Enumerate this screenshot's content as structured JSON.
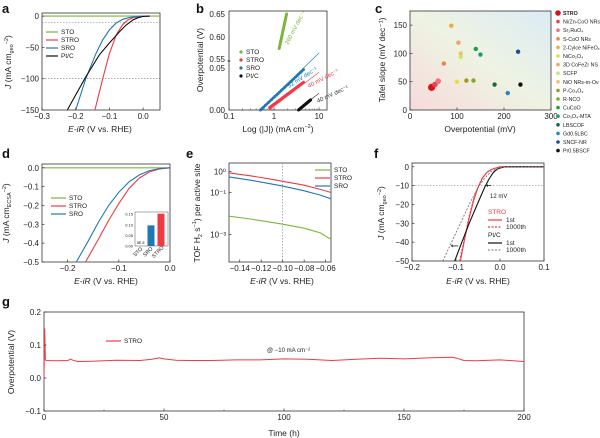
{
  "figure": {
    "panel_labels": [
      "a",
      "b",
      "c",
      "d",
      "e",
      "f",
      "g"
    ]
  },
  "colors": {
    "STO": "#7db53a",
    "STRO": "#ee3a45",
    "SRO": "#1f78b4",
    "PtC": "#111111"
  },
  "chart_data": [
    {
      "id": "a",
      "type": "line",
      "xlabel": "E-iR (V vs. RHE)",
      "ylabel": "J (mA cm_geo^-2)",
      "xlim": [
        -0.3,
        0.05
      ],
      "ylim": [
        -150,
        5
      ],
      "xticks": [
        -0.3,
        -0.2,
        -0.1,
        0.0
      ],
      "xtick_labels": [
        "−0.3",
        "−0.2",
        "−0.1",
        "0.0"
      ],
      "yticks": [
        0,
        -50,
        -100,
        -150
      ],
      "ytick_labels": [
        "0",
        "−50",
        "−100",
        "−150"
      ],
      "hlines": [
        -10,
        -100
      ],
      "legend": [
        "STO",
        "STRO",
        "SRO",
        "Pt/C"
      ],
      "legend_position": "middle-left",
      "series": [
        {
          "name": "STO",
          "color_key": "STO",
          "x": [
            -0.3,
            0.05
          ],
          "y": [
            0,
            0
          ]
        },
        {
          "name": "STRO",
          "color_key": "STRO",
          "x": [
            -0.143,
            -0.12,
            -0.1,
            -0.08,
            -0.06,
            -0.045,
            -0.03,
            -0.015,
            0.0,
            0.02
          ],
          "y": [
            -150,
            -100,
            -60,
            -30,
            -13,
            -6,
            -2.5,
            -1,
            -0.3,
            0
          ]
        },
        {
          "name": "SRO",
          "color_key": "SRO",
          "x": [
            -0.2,
            -0.17,
            -0.14,
            -0.12,
            -0.1,
            -0.08,
            -0.06,
            -0.04,
            -0.02,
            0.0
          ],
          "y": [
            -150,
            -100,
            -60,
            -38,
            -22,
            -11,
            -5,
            -2,
            -0.6,
            0
          ]
        },
        {
          "name": "Pt/C",
          "color_key": "PtC",
          "x": [
            -0.225,
            -0.17,
            -0.13,
            -0.1,
            -0.07,
            -0.05,
            -0.03,
            -0.015,
            0.0,
            0.02
          ],
          "y": [
            -150,
            -97,
            -62,
            -43,
            -25,
            -14,
            -6,
            -2.5,
            -0.5,
            0
          ]
        }
      ]
    },
    {
      "id": "b",
      "type": "scatter",
      "xlabel": "Log (|J|) (mA cm^-2)",
      "ylabel": "Overpotential (V)",
      "xscale": "log",
      "xlim": [
        0.1,
        15
      ],
      "xtick_labels": [
        "0.1",
        "1",
        "10"
      ],
      "ytick_labels_lower": [
        "0.00",
        "0.05"
      ],
      "ytick_labels_upper": [
        "0.55",
        "0.60",
        "0.65"
      ],
      "axis_break": "0.05-0.55",
      "legend": [
        "STO",
        "STRO",
        "SRO",
        "Pt/C"
      ],
      "legend_position": "middle-left",
      "annotations": [
        "260 mV dec^-1",
        "52 mV dec^-1",
        "40 mV dec^-1",
        "40 mV dec^-1"
      ],
      "series": [
        {
          "name": "STO",
          "color_key": "STO",
          "tafel_slope_mV_dec": 260,
          "x_range": [
            1.3,
            1.9
          ],
          "y_range": [
            0.575,
            0.65
          ]
        },
        {
          "name": "STRO",
          "color_key": "STRO",
          "tafel_slope_mV_dec": 40,
          "x_range": [
            0.8,
            4.5
          ],
          "y_range": [
            0.003,
            0.033
          ]
        },
        {
          "name": "SRO",
          "color_key": "SRO",
          "tafel_slope_mV_dec": 52,
          "x_range": [
            0.5,
            4.5
          ],
          "y_range": [
            0.0,
            0.048
          ]
        },
        {
          "name": "Pt/C",
          "color_key": "PtC",
          "tafel_slope_mV_dec": 40,
          "x_range": [
            3.5,
            6.5
          ],
          "y_range": [
            0.0,
            0.012
          ]
        }
      ]
    },
    {
      "id": "c",
      "type": "scatter",
      "xlabel": "Overpotential (mV)",
      "ylabel": "Tafel slope (mV dec^-1)",
      "xlim": [
        0,
        300
      ],
      "ylim": [
        0,
        175
      ],
      "xticks": [
        0,
        100,
        200,
        300
      ],
      "yticks": [
        0,
        50,
        100,
        150
      ],
      "legend_position": "right",
      "points": [
        {
          "label": "STRO",
          "x": 46,
          "y": 40,
          "color": "#d7141e",
          "size": "large"
        },
        {
          "label": "Ni/Zn-CoO NRs",
          "x": 53,
          "y": 45,
          "color": "#f0424e",
          "size": "medium"
        },
        {
          "label": "Sr2RuO4",
          "x": 60,
          "y": 51,
          "color": "#f26f7b",
          "size": "medium"
        },
        {
          "label": "S-CoO NRs",
          "x": 72,
          "y": 82,
          "color": "#f0863a",
          "size": "small"
        },
        {
          "label": "2-Cycle NiFeOx",
          "x": 88,
          "y": 149,
          "color": "#f2a93b",
          "size": "small"
        },
        {
          "label": "NiCo2O4",
          "x": 100,
          "y": 50,
          "color": "#e8e03a",
          "size": "small"
        },
        {
          "label": "3D CoFeZr NS",
          "x": 103,
          "y": 119,
          "color": "#f4a06a",
          "size": "small"
        },
        {
          "label": "SCFP",
          "x": 108,
          "y": 94,
          "color": "#c4e86c",
          "size": "small"
        },
        {
          "label": "NiO NRs-m-Ov",
          "x": 108,
          "y": 100,
          "color": "#f0c26a",
          "size": "small"
        },
        {
          "label": "P-Co3O4",
          "x": 120,
          "y": 52,
          "color": "#a29a1e",
          "size": "small"
        },
        {
          "label": "R-NCO",
          "x": 135,
          "y": 52,
          "color": "#7eaa2a",
          "size": "small"
        },
        {
          "label": "CuCoO",
          "x": 140,
          "y": 108,
          "color": "#1ea03a",
          "size": "small"
        },
        {
          "label": "Co3O4-MTA",
          "x": 150,
          "y": 98,
          "color": "#1d9a78",
          "size": "small"
        },
        {
          "label": "LBSCOF",
          "x": 180,
          "y": 45,
          "color": "#0e6a4a",
          "size": "small"
        },
        {
          "label": "Gd0.5LBC",
          "x": 208,
          "y": 30,
          "color": "#1f86c8",
          "size": "small"
        },
        {
          "label": "SNCF-NR",
          "x": 230,
          "y": 103,
          "color": "#1a4f8a",
          "size": "small"
        },
        {
          "label": "Pr0.5BSCF",
          "x": 235,
          "y": 45,
          "color": "#111111",
          "size": "small"
        }
      ],
      "legend_labels": [
        "STRO",
        "Ni/Zn-CoO NRs",
        "Sr₂RuO₄",
        "S-CoO NRs",
        "2-Cylce NiFeOₓ",
        "NiCo₂O₄",
        "3D CoFeZr NS",
        "SCFP",
        "NiO NRs-m-Ov",
        "P-Co₃O₄",
        "R-NCO",
        "CuCoO",
        "Co₃O₄-MTA",
        "LBSCOF",
        "Gd0.5LBC",
        "SNCF-NR",
        "Pr0.5BSCF"
      ]
    },
    {
      "id": "d",
      "type": "line",
      "xlabel": "E-iR (V vs. RHE)",
      "ylabel": "J (mA cm_ECSA^-2)",
      "xlim": [
        -0.25,
        0.0
      ],
      "ylim": [
        -0.5,
        0.02
      ],
      "xtick_labels": [
        "−0.2",
        "−0.1",
        "0.0"
      ],
      "xticks": [
        -0.2,
        -0.1,
        0.0
      ],
      "yticks": [
        0,
        -0.1,
        -0.2,
        -0.3,
        -0.4,
        -0.5
      ],
      "ytick_labels": [
        "0.0",
        "−0.1",
        "−0.2",
        "−0.3",
        "−0.4",
        "−0.5"
      ],
      "legend": [
        "STO",
        "STRO",
        "SRO"
      ],
      "legend_position": "middle-left",
      "series": [
        {
          "name": "STO",
          "color_key": "STO",
          "x": [
            -0.25,
            0.0
          ],
          "y": [
            0,
            0
          ]
        },
        {
          "name": "STRO",
          "color_key": "STRO",
          "x": [
            -0.165,
            -0.14,
            -0.12,
            -0.1,
            -0.08,
            -0.06,
            -0.04,
            -0.02,
            0.0
          ],
          "y": [
            -0.5,
            -0.38,
            -0.28,
            -0.19,
            -0.11,
            -0.055,
            -0.022,
            -0.006,
            0
          ]
        },
        {
          "name": "SRO",
          "color_key": "SRO",
          "x": [
            -0.183,
            -0.16,
            -0.14,
            -0.12,
            -0.1,
            -0.08,
            -0.06,
            -0.04,
            -0.02,
            0.0
          ],
          "y": [
            -0.5,
            -0.39,
            -0.29,
            -0.2,
            -0.13,
            -0.075,
            -0.038,
            -0.015,
            -0.004,
            0
          ]
        }
      ],
      "inset": {
        "type": "bar",
        "ylabel": "J (mA cm_ECSA^-2)",
        "categories": [
          "STO",
          "SRO",
          "STRO"
        ],
        "values": [
          5e-05,
          0.097,
          0.152
        ],
        "errors": [
          0,
          0.005,
          0.004
        ],
        "ylim": [
          0,
          0.16
        ],
        "ytick_labels": [
          "0.00",
          "0.05",
          "0.10",
          "0.15"
        ],
        "annotations": [
          "5E-5"
        ]
      }
    },
    {
      "id": "e",
      "type": "line",
      "xlabel": "E-iR (V vs. RHE)",
      "ylabel": "TOF H2 s^-1 per active site",
      "yscale": "log",
      "xlim": [
        -0.15,
        -0.055
      ],
      "xticks": [
        -0.14,
        -0.12,
        -0.1,
        -0.08,
        -0.06
      ],
      "xtick_labels": [
        "−0.14",
        "−0.12",
        "−0.10",
        "−0.08",
        "−0.06"
      ],
      "ytick_labels": [
        "10^0",
        "10^-1",
        "10^-3"
      ],
      "vline": -0.1,
      "legend": [
        "STO",
        "STRO",
        "SRO"
      ],
      "legend_position": "top-right",
      "series": [
        {
          "name": "STO",
          "color_key": "STO",
          "x": [
            -0.15,
            -0.13,
            -0.11,
            -0.1,
            -0.08,
            -0.065,
            -0.055
          ],
          "y": [
            0.0075,
            0.0055,
            0.0038,
            0.0031,
            0.002,
            0.0012,
            0.0006
          ]
        },
        {
          "name": "STRO",
          "color_key": "STRO",
          "x": [
            -0.15,
            -0.13,
            -0.11,
            -0.1,
            -0.08,
            -0.065,
            -0.055
          ],
          "y": [
            0.85,
            0.62,
            0.42,
            0.34,
            0.22,
            0.14,
            0.1
          ]
        },
        {
          "name": "SRO",
          "color_key": "SRO",
          "x": [
            -0.15,
            -0.13,
            -0.11,
            -0.1,
            -0.08,
            -0.065,
            -0.055
          ],
          "y": [
            0.55,
            0.38,
            0.25,
            0.2,
            0.12,
            0.075,
            0.05
          ]
        }
      ]
    },
    {
      "id": "f",
      "type": "line",
      "xlabel": "E-iR (V vs. RHE)",
      "ylabel": "J (mA cm_geo^-2)",
      "xlim": [
        -0.2,
        0.1
      ],
      "ylim": [
        -50,
        2
      ],
      "xticks": [
        -0.2,
        -0.1,
        0.0,
        0.1
      ],
      "xtick_labels": [
        "−0.2",
        "−0.1",
        "0.0",
        "0.1"
      ],
      "yticks": [
        0,
        -10,
        -20,
        -30,
        -40,
        -50
      ],
      "ytick_labels": [
        "0",
        "−10",
        "−20",
        "−30",
        "−40",
        "−50"
      ],
      "hline": -10,
      "annotations": [
        "12 mV"
      ],
      "legend_groups": [
        {
          "title": "STRO",
          "entries": [
            "1st",
            "1000th"
          ]
        },
        {
          "title": "Pt/C",
          "entries": [
            "1st",
            "1000th"
          ]
        }
      ],
      "series": [
        {
          "name": "STRO 1st",
          "color_key": "STRO",
          "dash": false,
          "x": [
            -0.09,
            -0.08,
            -0.07,
            -0.06,
            -0.05,
            -0.04,
            -0.03,
            -0.02,
            -0.01,
            0.0,
            0.1
          ],
          "y": [
            -50,
            -38,
            -27,
            -18,
            -11,
            -6,
            -3,
            -1.5,
            -0.7,
            0,
            0
          ]
        },
        {
          "name": "STRO 1000th",
          "color_key": "STRO",
          "dash": true,
          "x": [
            -0.092,
            -0.08,
            -0.07,
            -0.06,
            -0.05,
            -0.04,
            -0.03,
            -0.02,
            -0.01,
            0.0,
            0.1
          ],
          "y": [
            -50,
            -37,
            -26,
            -17,
            -10.5,
            -5.8,
            -2.9,
            -1.4,
            -0.6,
            0,
            0
          ]
        },
        {
          "name": "Pt/C 1st",
          "color_key": "PtC",
          "dash": false,
          "x": [
            -0.103,
            -0.09,
            -0.07,
            -0.05,
            -0.035,
            -0.025,
            -0.015,
            -0.005,
            0.01,
            0.1
          ],
          "y": [
            -50,
            -42,
            -30,
            -19,
            -11,
            -6.5,
            -3,
            -1,
            0,
            0
          ]
        },
        {
          "name": "Pt/C 1000th",
          "color_key": "PtC",
          "dash": true,
          "x": [
            -0.13,
            -0.11,
            -0.09,
            -0.07,
            -0.05,
            -0.035,
            -0.02,
            -0.005,
            0.01,
            0.1
          ],
          "y": [
            -50,
            -40,
            -30,
            -20,
            -11,
            -6,
            -2.5,
            -0.8,
            0,
            0
          ]
        }
      ]
    },
    {
      "id": "g",
      "type": "line",
      "xlabel": "Time (h)",
      "ylabel": "Overpotential (V)",
      "xlim": [
        0,
        200
      ],
      "ylim": [
        -0.1,
        0.2
      ],
      "xticks": [
        0,
        50,
        100,
        150,
        200
      ],
      "xtick_labels": [
        "0",
        "50",
        "100",
        "150",
        "200"
      ],
      "yticks": [
        0.2,
        0.1,
        0.0,
        -0.1
      ],
      "ytick_labels": [
        "0.2",
        "0.1",
        "0.0",
        "−0.1"
      ],
      "legend": [
        "STRO"
      ],
      "legend_position": "top-left",
      "annotations": [
        "@ −10 mA cm^-2"
      ],
      "series": [
        {
          "name": "STRO",
          "color_key": "STRO",
          "x": [
            0,
            0.3,
            0.6,
            1,
            5,
            10,
            11,
            12,
            14,
            20,
            30,
            40,
            45,
            48,
            50,
            55,
            60,
            70,
            80,
            90,
            100,
            110,
            120,
            130,
            140,
            150,
            160,
            170,
            172,
            175,
            180,
            190,
            200
          ],
          "y": [
            0.0,
            0.15,
            0.055,
            0.053,
            0.052,
            0.053,
            0.058,
            0.054,
            0.05,
            0.051,
            0.054,
            0.053,
            0.057,
            0.061,
            0.058,
            0.054,
            0.053,
            0.053,
            0.055,
            0.055,
            0.058,
            0.057,
            0.053,
            0.057,
            0.06,
            0.058,
            0.061,
            0.063,
            0.06,
            0.053,
            0.052,
            0.055,
            0.05
          ]
        }
      ]
    }
  ],
  "text": {
    "a": {
      "label": "a",
      "legend": [
        "STO",
        "STRO",
        "SRO",
        "Pt/C"
      ],
      "xlabel": "E-iR (V vs. RHE)",
      "ylabel": "J (mA cm",
      "ylabel_sub": "geo",
      "ylabel_sup": "−2",
      "ylabel_end": ")"
    },
    "b": {
      "label": "b",
      "legend": [
        "STO",
        "STRO",
        "SRO",
        "Pt/C"
      ],
      "xlabel": "Log (|J|) (mA cm",
      "xlabel_sup": "−2",
      "xlabel_end": ")",
      "ylabel": "Overpotential (V)",
      "slopes": [
        "260 mV dec⁻¹",
        "52 mV dec⁻¹",
        "40 mV dec⁻¹",
        "40 mV dec⁻¹"
      ]
    },
    "c": {
      "label": "c",
      "xlabel": "Overpotential (mV)",
      "ylabel": "Tafel slope (mV dec⁻¹)"
    },
    "d": {
      "label": "d",
      "legend": [
        "STO",
        "STRO",
        "SRO"
      ],
      "xlabel": "E-iR (V vs. RHE)",
      "ylabel": "J (mA cm",
      "ylabel_sub": "ECSA",
      "ylabel_sup": "−2",
      "ylabel_end": ")",
      "inset_ylabel": "J (mA cm⁻²ECSA)",
      "inset_note": "5E-5"
    },
    "e": {
      "label": "e",
      "legend": [
        "STO",
        "STRO",
        "SRO"
      ],
      "xlabel": "E-iR (V vs. RHE)",
      "ylabel": "TOF H₂ s⁻¹) per active site"
    },
    "f": {
      "label": "f",
      "xlabel": "E-iR (V vs. RHE)",
      "ylabel": "J (mA cm",
      "ylabel_sub": "geo",
      "ylabel_sup": "−2",
      "ylabel_end": ")",
      "ann": "12 mV",
      "g1": "STRO",
      "g2": "Pt/C",
      "e1": "1st",
      "e2": "1000th"
    },
    "g": {
      "label": "g",
      "legend": "STRO",
      "xlabel": "Time (h)",
      "ylabel": "Overpotential (V)",
      "ann": "@ −10 mA cm⁻²"
    }
  }
}
